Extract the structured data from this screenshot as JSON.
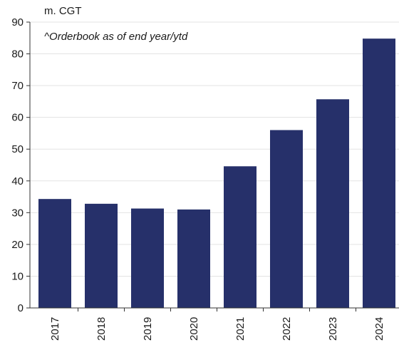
{
  "chart_data": {
    "type": "bar",
    "unit_label": "m. CGT",
    "annotation": "^Orderbook as of end year/ytd",
    "categories": [
      "2017",
      "2018",
      "2019",
      "2020",
      "2021",
      "2022",
      "2023",
      "2024"
    ],
    "values": [
      34.3,
      32.8,
      31.3,
      31.0,
      44.6,
      56.0,
      65.7,
      84.8
    ],
    "ylim": [
      0,
      90
    ],
    "yticks": [
      0,
      10,
      20,
      30,
      40,
      50,
      60,
      70,
      80,
      90
    ],
    "grid": true,
    "bar_color": "#26306a"
  }
}
